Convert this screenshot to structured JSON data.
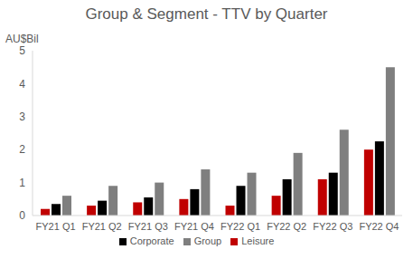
{
  "chart_data": {
    "type": "bar",
    "title": "Group & Segment - TTV by Quarter",
    "y_label": "AU$Bil",
    "categories": [
      "FY21 Q1",
      "FY21 Q2",
      "FY21 Q3",
      "FY21 Q4",
      "FY22 Q1",
      "FY22 Q2",
      "FY22 Q3",
      "FY22 Q4"
    ],
    "series": [
      {
        "name": "Leisure",
        "color": "#c00000",
        "values": [
          0.2,
          0.3,
          0.4,
          0.5,
          0.3,
          0.6,
          1.1,
          2.0
        ]
      },
      {
        "name": "Corporate",
        "color": "#000000",
        "values": [
          0.35,
          0.45,
          0.55,
          0.8,
          0.9,
          1.1,
          1.3,
          2.25
        ]
      },
      {
        "name": "Group",
        "color": "#7f7f7f",
        "values": [
          0.6,
          0.9,
          1.0,
          1.4,
          1.3,
          1.9,
          2.6,
          4.5
        ]
      }
    ],
    "ylim": [
      0,
      5
    ],
    "yticks": [
      0,
      1,
      2,
      3,
      4,
      5
    ],
    "grid": false,
    "legend": "bottom"
  }
}
